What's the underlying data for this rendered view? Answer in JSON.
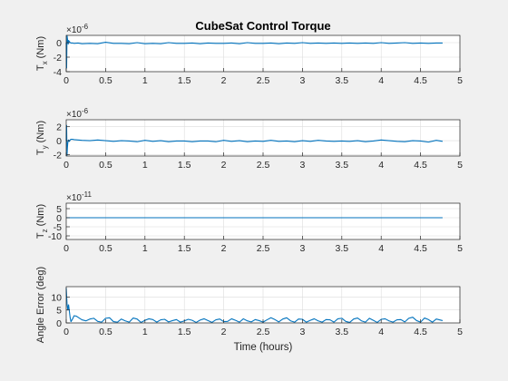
{
  "figure": {
    "title": "CubeSat Control Torque",
    "background": "#f0f0f0",
    "axes_background": "#ffffff",
    "line_color": "#0072bd",
    "grid_color": "#dcdcdc"
  },
  "chart_data": [
    {
      "type": "line",
      "name": "tx",
      "title": "CubeSat Control Torque",
      "ylabel_main": "T",
      "ylabel_sub": "x",
      "ylabel_unit": " (Nm)",
      "exponent_base": "×10",
      "exponent_power": "-6",
      "xlim": [
        0,
        5
      ],
      "ylim": [
        -4,
        1
      ],
      "xticks": [
        0,
        0.5,
        1,
        1.5,
        2,
        2.5,
        3,
        3.5,
        4,
        4.5,
        5
      ],
      "xtick_labels": [
        "0",
        "0.5",
        "1",
        "1.5",
        "2",
        "2.5",
        "3",
        "3.5",
        "4",
        "4.5",
        "5"
      ],
      "yticks": [
        -4,
        -2,
        0
      ],
      "ytick_labels": [
        "-4",
        "-2",
        "0"
      ],
      "grid": true,
      "x": [
        0,
        0.005,
        0.01,
        0.015,
        0.02,
        0.025,
        0.03,
        0.04,
        0.05,
        0.06,
        0.08,
        0.1,
        0.15,
        0.2,
        0.3,
        0.4,
        0.5,
        0.6,
        0.7,
        0.8,
        0.9,
        1.0,
        1.1,
        1.2,
        1.3,
        1.4,
        1.5,
        1.6,
        1.7,
        1.8,
        1.9,
        2.0,
        2.1,
        2.2,
        2.3,
        2.4,
        2.5,
        2.6,
        2.7,
        2.8,
        2.9,
        3.0,
        3.1,
        3.2,
        3.3,
        3.4,
        3.5,
        3.6,
        3.7,
        3.8,
        3.9,
        4.0,
        4.1,
        4.2,
        4.3,
        4.4,
        4.5,
        4.6,
        4.7,
        4.78
      ],
      "y": [
        0,
        -3.5,
        1.0,
        0.6,
        0.1,
        -0.2,
        0.3,
        0.15,
        0.0,
        -0.05,
        -0.05,
        -0.1,
        -0.05,
        -0.15,
        -0.1,
        -0.15,
        0.05,
        -0.1,
        -0.1,
        -0.15,
        0.0,
        -0.15,
        -0.1,
        -0.15,
        0.0,
        -0.1,
        -0.1,
        -0.05,
        -0.15,
        -0.05,
        -0.1,
        -0.1,
        -0.05,
        -0.15,
        0.0,
        -0.1,
        -0.1,
        -0.05,
        -0.15,
        -0.05,
        -0.1,
        0.0,
        -0.1,
        -0.05,
        -0.1,
        -0.05,
        -0.1,
        -0.05,
        -0.1,
        -0.05,
        -0.1,
        0.0,
        -0.1,
        -0.05,
        0.0,
        -0.1,
        -0.05,
        -0.1,
        -0.05,
        -0.05
      ]
    },
    {
      "type": "line",
      "name": "ty",
      "ylabel_main": "T",
      "ylabel_sub": "y",
      "ylabel_unit": " (Nm)",
      "exponent_base": "×10",
      "exponent_power": "-6",
      "xlim": [
        0,
        5
      ],
      "ylim": [
        -2.2,
        3
      ],
      "xticks": [
        0,
        0.5,
        1,
        1.5,
        2,
        2.5,
        3,
        3.5,
        4,
        4.5,
        5
      ],
      "xtick_labels": [
        "0",
        "0.5",
        "1",
        "1.5",
        "2",
        "2.5",
        "3",
        "3.5",
        "4",
        "4.5",
        "5"
      ],
      "yticks": [
        -2,
        0,
        2
      ],
      "ytick_labels": [
        "-2",
        "0",
        "2"
      ],
      "grid": true,
      "x": [
        0,
        0.005,
        0.01,
        0.015,
        0.02,
        0.03,
        0.04,
        0.05,
        0.06,
        0.08,
        0.1,
        0.15,
        0.2,
        0.3,
        0.4,
        0.5,
        0.6,
        0.7,
        0.8,
        0.9,
        1.0,
        1.1,
        1.2,
        1.3,
        1.4,
        1.5,
        1.6,
        1.7,
        1.8,
        1.9,
        2.0,
        2.1,
        2.2,
        2.3,
        2.4,
        2.5,
        2.6,
        2.7,
        2.8,
        2.9,
        3.0,
        3.1,
        3.2,
        3.3,
        3.4,
        3.5,
        3.6,
        3.7,
        3.8,
        3.9,
        4.0,
        4.1,
        4.2,
        4.3,
        4.4,
        4.5,
        4.6,
        4.7,
        4.78
      ],
      "y": [
        0,
        2.2,
        -2.1,
        -1.0,
        -0.3,
        0.1,
        -0.1,
        0.1,
        0.2,
        0.2,
        0.15,
        0.1,
        0.05,
        0.0,
        0.1,
        0.0,
        -0.1,
        0.0,
        -0.05,
        -0.15,
        0.05,
        -0.1,
        0.0,
        -0.15,
        -0.05,
        -0.05,
        -0.15,
        -0.05,
        -0.05,
        -0.15,
        0.05,
        -0.1,
        0.0,
        -0.15,
        -0.05,
        -0.1,
        0.05,
        -0.1,
        -0.05,
        -0.15,
        0.0,
        -0.1,
        0.05,
        -0.05,
        -0.1,
        -0.05,
        -0.1,
        0.0,
        -0.15,
        -0.05,
        0.1,
        0.0,
        -0.1,
        -0.15,
        0.0,
        -0.05,
        -0.2,
        0.05,
        -0.1
      ]
    },
    {
      "type": "line",
      "name": "tz",
      "ylabel_main": "T",
      "ylabel_sub": "z",
      "ylabel_unit": " (Nm)",
      "exponent_base": "×10",
      "exponent_power": "-11",
      "xlim": [
        0,
        5
      ],
      "ylim": [
        -12,
        8
      ],
      "xticks": [
        0,
        0.5,
        1,
        1.5,
        2,
        2.5,
        3,
        3.5,
        4,
        4.5,
        5
      ],
      "xtick_labels": [
        "0",
        "0.5",
        "1",
        "1.5",
        "2",
        "2.5",
        "3",
        "3.5",
        "4",
        "4.5",
        "5"
      ],
      "yticks": [
        -10,
        -5,
        0,
        5
      ],
      "ytick_labels": [
        "-10",
        "-5",
        "0",
        "5"
      ],
      "grid": true,
      "x": [
        0,
        4.78
      ],
      "y": [
        0,
        0
      ]
    },
    {
      "type": "line",
      "name": "angle-error",
      "ylabel_main": "Angle Error (deg)",
      "xlabel": "Time (hours)",
      "xlim": [
        0,
        5
      ],
      "ylim": [
        0,
        14
      ],
      "xticks": [
        0,
        0.5,
        1,
        1.5,
        2,
        2.5,
        3,
        3.5,
        4,
        4.5,
        5
      ],
      "xtick_labels": [
        "0",
        "0.5",
        "1",
        "1.5",
        "2",
        "2.5",
        "3",
        "3.5",
        "4",
        "4.5",
        "5"
      ],
      "yticks": [
        0,
        5,
        10
      ],
      "ytick_labels": [
        "0",
        "5",
        "10"
      ],
      "grid": true,
      "x": [
        0,
        0.01,
        0.02,
        0.03,
        0.04,
        0.05,
        0.06,
        0.08,
        0.1,
        0.13,
        0.16,
        0.2,
        0.25,
        0.3,
        0.35,
        0.4,
        0.45,
        0.5,
        0.55,
        0.6,
        0.65,
        0.7,
        0.75,
        0.8,
        0.85,
        0.9,
        0.95,
        1.0,
        1.05,
        1.1,
        1.15,
        1.2,
        1.25,
        1.3,
        1.35,
        1.4,
        1.45,
        1.5,
        1.55,
        1.6,
        1.65,
        1.7,
        1.75,
        1.8,
        1.85,
        1.9,
        1.95,
        2.0,
        2.05,
        2.1,
        2.15,
        2.2,
        2.25,
        2.3,
        2.35,
        2.4,
        2.45,
        2.5,
        2.55,
        2.6,
        2.65,
        2.7,
        2.75,
        2.8,
        2.85,
        2.9,
        2.95,
        3.0,
        3.05,
        3.1,
        3.15,
        3.2,
        3.25,
        3.3,
        3.35,
        3.4,
        3.45,
        3.5,
        3.55,
        3.6,
        3.65,
        3.7,
        3.75,
        3.8,
        3.85,
        3.9,
        3.95,
        4.0,
        4.05,
        4.1,
        4.15,
        4.2,
        4.25,
        4.3,
        4.35,
        4.4,
        4.45,
        4.5,
        4.55,
        4.6,
        4.65,
        4.7,
        4.78
      ],
      "y": [
        13.5,
        7.5,
        5.0,
        7.0,
        4.5,
        2.0,
        0.5,
        1.5,
        2.8,
        2.6,
        2.0,
        1.2,
        0.8,
        1.5,
        1.8,
        0.6,
        0.3,
        1.8,
        2.0,
        0.5,
        0.3,
        1.5,
        0.8,
        0.3,
        1.9,
        1.5,
        0.2,
        1.0,
        1.6,
        1.3,
        0.3,
        1.2,
        1.4,
        0.4,
        0.9,
        1.3,
        0.3,
        0.8,
        1.4,
        1.0,
        0.2,
        1.1,
        1.6,
        0.9,
        0.2,
        1.2,
        1.5,
        0.5,
        0.6,
        1.6,
        1.0,
        0.3,
        1.6,
        0.8,
        0.4,
        1.3,
        0.9,
        0.3,
        1.2,
        2.0,
        1.3,
        0.4,
        1.5,
        2.0,
        0.8,
        0.3,
        1.5,
        1.4,
        0.3,
        1.0,
        1.6,
        0.8,
        0.3,
        1.3,
        1.2,
        0.3,
        1.6,
        1.8,
        0.6,
        0.2,
        1.5,
        1.9,
        0.8,
        0.3,
        1.8,
        1.0,
        0.2,
        1.4,
        1.6,
        0.8,
        0.3,
        1.2,
        1.3,
        0.4,
        1.8,
        2.2,
        0.9,
        0.3,
        1.9,
        1.3,
        0.3,
        1.5,
        0.9
      ]
    }
  ]
}
